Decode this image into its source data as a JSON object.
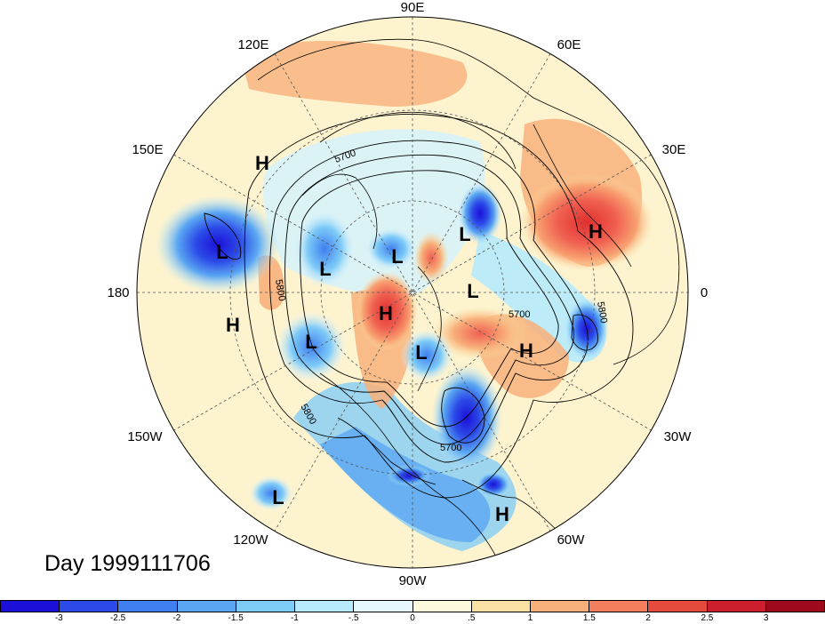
{
  "map": {
    "projection": "north-polar-stereographic",
    "longitude_labels": [
      {
        "text": "90E",
        "lon": 90
      },
      {
        "text": "60E",
        "lon": 60
      },
      {
        "text": "30E",
        "lon": 30
      },
      {
        "text": "0",
        "lon": 0
      },
      {
        "text": "30W",
        "lon": -30
      },
      {
        "text": "60W",
        "lon": -60
      },
      {
        "text": "90W",
        "lon": -90
      },
      {
        "text": "120W",
        "lon": -120
      },
      {
        "text": "150W",
        "lon": -150
      },
      {
        "text": "180",
        "lon": 180
      },
      {
        "text": "150E",
        "lon": 150
      },
      {
        "text": "120E",
        "lon": 120
      }
    ],
    "pressure_centers": [
      {
        "type": "H",
        "label": "H"
      },
      {
        "type": "H",
        "label": "H"
      },
      {
        "type": "H",
        "label": "H"
      },
      {
        "type": "H",
        "label": "H"
      },
      {
        "type": "H",
        "label": "H"
      },
      {
        "type": "H",
        "label": "H"
      },
      {
        "type": "L",
        "label": "L"
      },
      {
        "type": "L",
        "label": "L"
      },
      {
        "type": "L",
        "label": "L"
      },
      {
        "type": "L",
        "label": "L"
      },
      {
        "type": "L",
        "label": "L"
      },
      {
        "type": "L",
        "label": "L"
      },
      {
        "type": "L",
        "label": "L"
      },
      {
        "type": "L",
        "label": "L"
      }
    ],
    "contour_labels": [
      "5700",
      "5800",
      "5700",
      "5800",
      "5800",
      "5700"
    ],
    "colors": {
      "land_outline": "#000000",
      "grid_line": "#555555"
    }
  },
  "title": {
    "day_label": "Day 1999111706"
  },
  "colorbar": {
    "colors": [
      "#1c10d8",
      "#2b4ae8",
      "#3f7ff0",
      "#5aa6f2",
      "#7ecbf8",
      "#b6eafc",
      "#e6f8fd",
      "#fdf9dc",
      "#fbe0a4",
      "#f8b07a",
      "#f27e5e",
      "#e54a3c",
      "#cc1e2c",
      "#9e0a1c"
    ],
    "tick_labels": [
      "-3",
      "-2.5",
      "-2",
      "-1.5",
      "-1",
      "-.5",
      "0",
      ".5",
      "1",
      "1.5",
      "2",
      "2.5",
      "3"
    ]
  }
}
